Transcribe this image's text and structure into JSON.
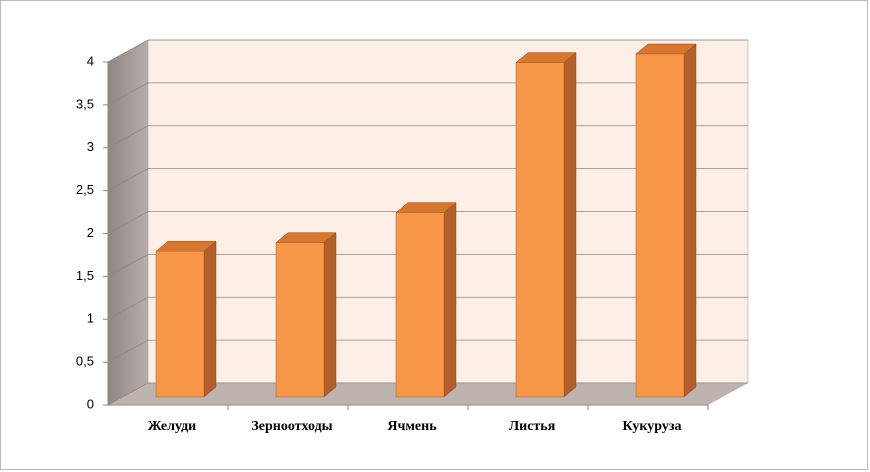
{
  "chart_data": {
    "type": "bar3d",
    "categories": [
      "Желуди",
      "Зерноотходы",
      "Ячмень",
      "Листья",
      "Кукуруза"
    ],
    "values": [
      1.7,
      1.8,
      2.15,
      3.9,
      4.0
    ],
    "color": "#f79646",
    "ylim": [
      0,
      4
    ],
    "yticks": [
      0,
      {
        "value": 0.5,
        "label": "0,5"
      },
      1,
      {
        "value": 1.5,
        "label": "1,5"
      },
      2,
      {
        "value": 2.5,
        "label": "2,5"
      },
      3,
      {
        "value": 3.5,
        "label": "3,5"
      },
      4
    ],
    "grid": true
  }
}
